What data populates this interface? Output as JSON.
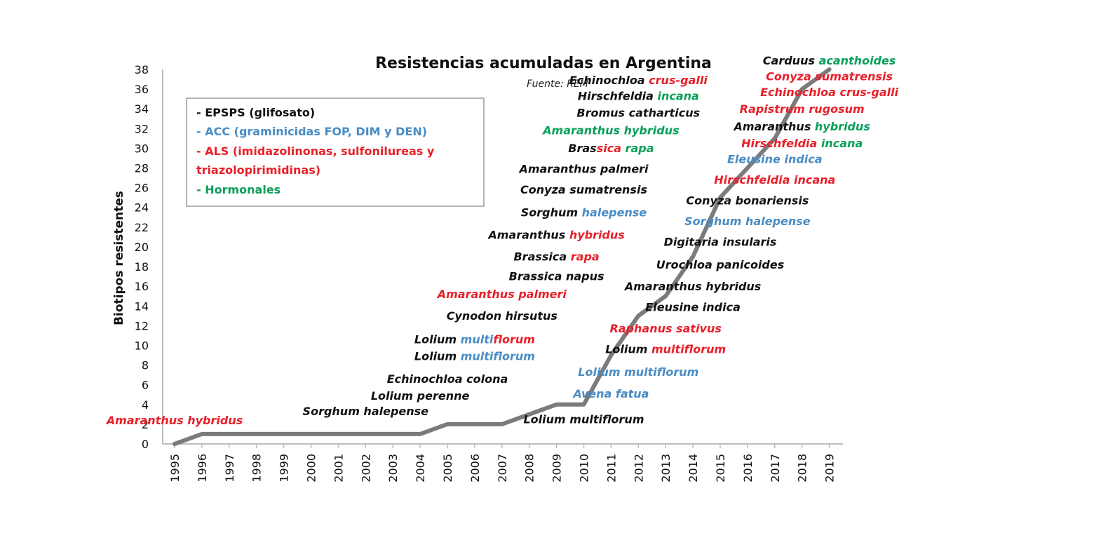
{
  "colors": {
    "black": "#111111",
    "blue": "#4a8cc4",
    "red": "#e8202a",
    "green": "#0aa05a",
    "line": "#7b7b7b",
    "axis": "#bdbdbd"
  },
  "chart_data": {
    "type": "line",
    "title": "Resistencias acumuladas en Argentina",
    "source": "Fuente: REM",
    "ylabel": "Biotipos resistentes",
    "xlabel": "",
    "ylim": [
      0,
      38
    ],
    "yticks": [
      0,
      2,
      4,
      6,
      8,
      10,
      12,
      14,
      16,
      18,
      20,
      22,
      24,
      26,
      28,
      30,
      32,
      34,
      36,
      38
    ],
    "categories": [
      "1995",
      "1996",
      "1997",
      "1998",
      "1999",
      "2000",
      "2001",
      "2002",
      "2003",
      "2004",
      "2005",
      "2006",
      "2007",
      "2008",
      "2009",
      "2010",
      "2011",
      "2012",
      "2013",
      "2014",
      "2015",
      "2016",
      "2017",
      "2018",
      "2019"
    ],
    "values": [
      0,
      1,
      1,
      1,
      1,
      1,
      1,
      1,
      1,
      1,
      2,
      2,
      2,
      3,
      4,
      4,
      9,
      13,
      15,
      19,
      25,
      28,
      31,
      36,
      38
    ],
    "legend": [
      {
        "text": "- EPSPS (glifosato)",
        "color": "black"
      },
      {
        "text": "- ACC (graminicidas FOP, DIM y DEN)",
        "color": "blue"
      },
      {
        "text": "- ALS (imidazolinonas, sulfonilureas y",
        "color": "red"
      },
      {
        "text": "triazolopirimidinas)",
        "color": "red"
      },
      {
        "text": "- Hormonales",
        "color": "green"
      }
    ],
    "annotations": [
      {
        "id": "a1995",
        "year": "1995",
        "y": 2.0,
        "parts": [
          {
            "t": "Amaranthus hybridus",
            "c": "red"
          }
        ]
      },
      {
        "id": "a2002",
        "year": "2002",
        "y": 2.9,
        "parts": [
          {
            "t": "Sorghum halepense",
            "c": "black"
          }
        ]
      },
      {
        "id": "a2004",
        "year": "2004",
        "y": 4.5,
        "parts": [
          {
            "t": "Lolium perenne",
            "c": "black"
          }
        ]
      },
      {
        "id": "a2005",
        "year": "2005",
        "y": 6.2,
        "parts": [
          {
            "t": "Echinochloa colona",
            "c": "black"
          }
        ]
      },
      {
        "id": "a2006l",
        "year": "2006",
        "y": 8.5,
        "parts": [
          {
            "t": "Lolium ",
            "c": "black"
          },
          {
            "t": "multiflorum",
            "c": "blue"
          }
        ]
      },
      {
        "id": "a2006m",
        "year": "2006",
        "y": 10.2,
        "parts": [
          {
            "t": "Lolium ",
            "c": "black"
          },
          {
            "t": "multi",
            "c": "blue"
          },
          {
            "t": "florum",
            "c": "red"
          }
        ]
      },
      {
        "id": "a2007c",
        "year": "2007",
        "y": 12.6,
        "parts": [
          {
            "t": "Cynodon hirsutus",
            "c": "black"
          }
        ]
      },
      {
        "id": "a2007a",
        "year": "2007",
        "y": 14.8,
        "parts": [
          {
            "t": "Amaranthus palmeri",
            "c": "red"
          }
        ]
      },
      {
        "id": "a2009n",
        "year": "2009",
        "y": 16.6,
        "parts": [
          {
            "t": "Brassica napus",
            "c": "black"
          }
        ]
      },
      {
        "id": "a2009r",
        "year": "2009",
        "y": 18.6,
        "parts": [
          {
            "t": "Brassica ",
            "c": "black"
          },
          {
            "t": "rapa",
            "c": "red"
          }
        ]
      },
      {
        "id": "a2009h",
        "year": "2009",
        "y": 20.8,
        "parts": [
          {
            "t": "Amaranthus ",
            "c": "black"
          },
          {
            "t": "hybridus",
            "c": "red"
          }
        ]
      },
      {
        "id": "a2010s",
        "year": "2010",
        "y": 23.1,
        "parts": [
          {
            "t": "Sorghum ",
            "c": "black"
          },
          {
            "t": "halepense",
            "c": "blue"
          }
        ]
      },
      {
        "id": "a2010c",
        "year": "2010",
        "y": 25.4,
        "parts": [
          {
            "t": "Conyza sumatrensis",
            "c": "black"
          }
        ]
      },
      {
        "id": "a2010p",
        "year": "2010",
        "y": 27.5,
        "parts": [
          {
            "t": "Amaranthus palmeri",
            "c": "black"
          }
        ]
      },
      {
        "id": "a2011b",
        "year": "2011",
        "y": 29.6,
        "parts": [
          {
            "t": "Bras",
            "c": "black"
          },
          {
            "t": "sica ",
            "c": "red"
          },
          {
            "t": "rapa",
            "c": "green"
          }
        ]
      },
      {
        "id": "a2011a",
        "year": "2011",
        "y": 31.4,
        "parts": [
          {
            "t": "Amaranthus hybridus",
            "c": "green"
          }
        ]
      },
      {
        "id": "a2012b",
        "year": "2012",
        "y": 33.2,
        "parts": [
          {
            "t": "Bromus catharticus",
            "c": "black"
          }
        ]
      },
      {
        "id": "a2012h",
        "year": "2012",
        "y": 34.9,
        "parts": [
          {
            "t": "Hirschfeldia ",
            "c": "black"
          },
          {
            "t": "incana",
            "c": "green"
          }
        ]
      },
      {
        "id": "a2012e",
        "year": "2012",
        "y": 36.5,
        "parts": [
          {
            "t": "Echinochloa ",
            "c": "black"
          },
          {
            "t": "crus-galli",
            "c": "red"
          }
        ]
      },
      {
        "id": "a2010l",
        "year": "2010",
        "y": 2.1,
        "parts": [
          {
            "t": "Lolium multiflorum",
            "c": "black"
          }
        ]
      },
      {
        "id": "a2011av",
        "year": "2011",
        "y": 4.7,
        "parts": [
          {
            "t": "Avena fatua",
            "c": "blue"
          }
        ]
      },
      {
        "id": "a2012lm",
        "year": "2012",
        "y": 6.9,
        "parts": [
          {
            "t": "Lolium multiflorum",
            "c": "blue"
          }
        ]
      },
      {
        "id": "a2013lm",
        "year": "2013",
        "y": 9.2,
        "parts": [
          {
            "t": "Lolium ",
            "c": "black"
          },
          {
            "t": "multiflorum",
            "c": "red"
          }
        ]
      },
      {
        "id": "a2013rs",
        "year": "2013",
        "y": 11.3,
        "parts": [
          {
            "t": "Raphanus sativus",
            "c": "red"
          }
        ]
      },
      {
        "id": "a2014ei",
        "year": "2014",
        "y": 13.5,
        "parts": [
          {
            "t": "Eleusine indica",
            "c": "black"
          }
        ]
      },
      {
        "id": "a2014ah",
        "year": "2014",
        "y": 15.6,
        "parts": [
          {
            "t": "Amaranthus hybridus",
            "c": "black"
          }
        ]
      },
      {
        "id": "a2015up",
        "year": "2015",
        "y": 17.8,
        "parts": [
          {
            "t": "Urochloa panicoides",
            "c": "black"
          }
        ]
      },
      {
        "id": "a2015di",
        "year": "2015",
        "y": 20.1,
        "parts": [
          {
            "t": "Digitaria insularis",
            "c": "black"
          }
        ]
      },
      {
        "id": "a2016sh",
        "year": "2016",
        "y": 22.2,
        "parts": [
          {
            "t": "Sorghum halepense",
            "c": "blue"
          }
        ]
      },
      {
        "id": "a2016cb",
        "year": "2016",
        "y": 24.3,
        "parts": [
          {
            "t": "Conyza bonariensis",
            "c": "black"
          }
        ]
      },
      {
        "id": "a2017hi",
        "year": "2017",
        "y": 26.4,
        "parts": [
          {
            "t": "Hirschfeldia incana",
            "c": "red"
          }
        ]
      },
      {
        "id": "a2017ei",
        "year": "2017",
        "y": 28.5,
        "parts": [
          {
            "t": "Eleusine indica",
            "c": "blue"
          }
        ]
      },
      {
        "id": "a2018hi",
        "year": "2018",
        "y": 30.1,
        "parts": [
          {
            "t": "Hirschfeldia ",
            "c": "red"
          },
          {
            "t": "incana",
            "c": "green"
          }
        ]
      },
      {
        "id": "a2018ah",
        "year": "2018",
        "y": 31.8,
        "parts": [
          {
            "t": "Amaranthus ",
            "c": "black"
          },
          {
            "t": "hybridus",
            "c": "green"
          }
        ]
      },
      {
        "id": "a2018rr",
        "year": "2018",
        "y": 33.6,
        "parts": [
          {
            "t": "Rapistrum rugosum",
            "c": "red"
          }
        ]
      },
      {
        "id": "a2019ec",
        "year": "2019",
        "y": 35.3,
        "parts": [
          {
            "t": "Echinochloa crus-galli",
            "c": "red"
          }
        ]
      },
      {
        "id": "a2019cs",
        "year": "2019",
        "y": 36.9,
        "parts": [
          {
            "t": "Conyza sumatrensis",
            "c": "red"
          }
        ]
      },
      {
        "id": "a2019ca",
        "year": "2019",
        "y": 38.5,
        "parts": [
          {
            "t": "Carduus ",
            "c": "black"
          },
          {
            "t": "acanthoides",
            "c": "green"
          }
        ]
      }
    ]
  }
}
